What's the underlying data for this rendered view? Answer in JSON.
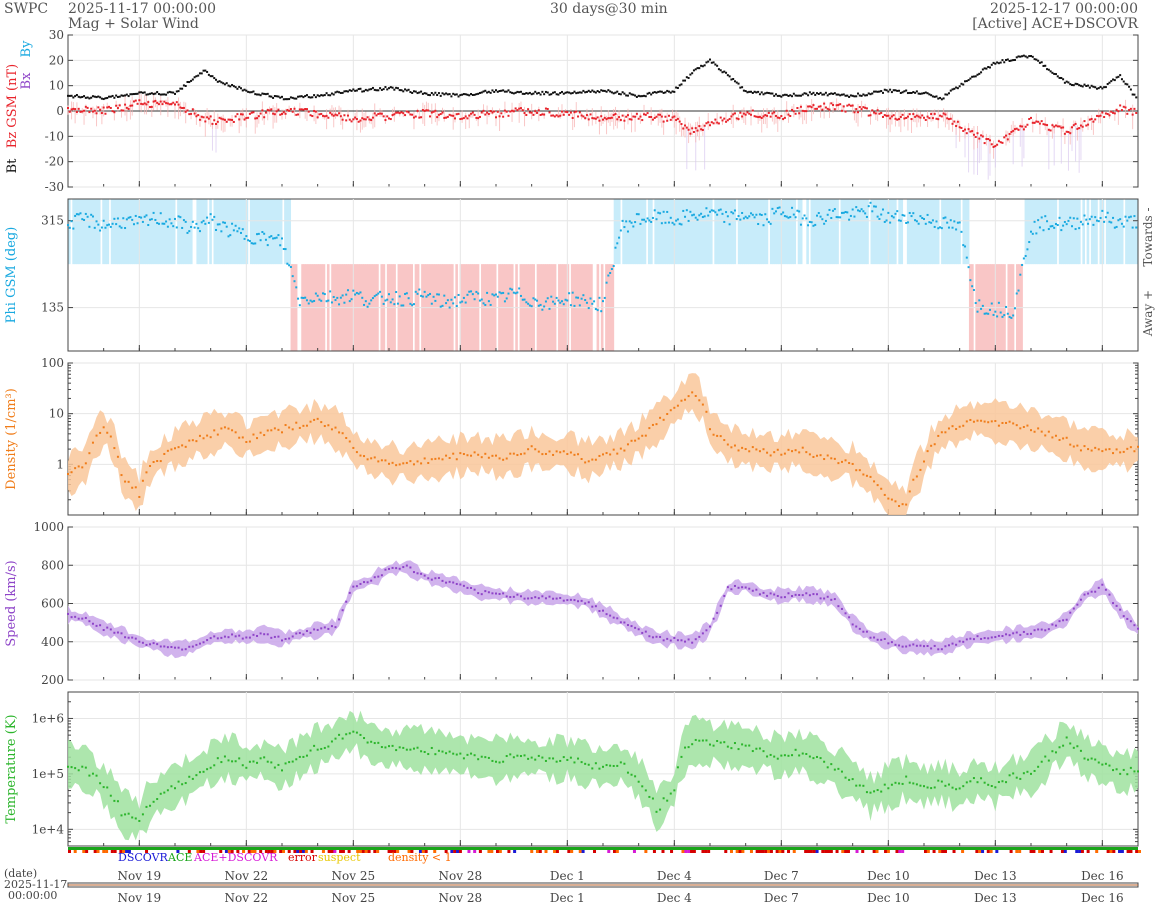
{
  "header": {
    "brand": "SWPC",
    "start_time": "2025-11-17 00:00:00",
    "subtitle": "Mag + Solar Wind",
    "span": "30 days@30 min",
    "end_time": "2025-12-17 00:00:00",
    "source": "[Active] ACE+DSCOVR"
  },
  "colors": {
    "bt": "#111111",
    "bz": "#e8242c",
    "bx": "#8e44c8",
    "by": "#19a9e0",
    "phi": "#19a9e0",
    "phi_towards_band": "#c8ecfa",
    "phi_away_band": "#f9c6c6",
    "density": "#f07d1a",
    "density_band": "#f9c79a",
    "speed": "#8e44c8",
    "speed_band": "#c9a6ea",
    "temperature": "#2bb52b",
    "temperature_band": "#9fe29f",
    "dscovr": "#1a1ad6",
    "ace": "#1aa51a",
    "acedscovr": "#d61ad6",
    "error": "#d60000",
    "suspect": "#e8c800",
    "density_lt1": "#ff6a00"
  },
  "legend": {
    "dscovr": "DSCOVR",
    "ace": "ACE",
    "acedscovr": "ACE+DSCOVR",
    "error": "error",
    "suspect": "suspect",
    "density": "density < 1"
  },
  "bottom": {
    "label_line1": "(date)",
    "label_line2": "2025-11-17",
    "label_line3": "00:00:00"
  },
  "chart_data": [
    {
      "type": "line",
      "name": "mag",
      "ylim": [
        -30,
        30
      ],
      "yticks": [
        30,
        20,
        10,
        0,
        -10,
        -20,
        -30
      ],
      "ylabel_parts": [
        "Bt",
        "Bz GSM (nT)",
        "Bx",
        "By"
      ],
      "series": [
        {
          "name": "Bt",
          "x": [
            0,
            1,
            2,
            3,
            3.8,
            4.2,
            5,
            6,
            7,
            8,
            9,
            10,
            11,
            12,
            13,
            14,
            15,
            16,
            17,
            17.5,
            18,
            19,
            20,
            21,
            22,
            23,
            24,
            24.5,
            25,
            26,
            27,
            28,
            29,
            29.5,
            30
          ],
          "y": [
            6,
            5,
            7,
            7,
            16,
            12,
            8,
            5,
            6,
            8,
            9,
            7,
            6,
            8,
            7,
            7,
            8,
            6,
            8,
            15,
            20,
            8,
            6,
            7,
            6,
            8,
            7,
            5,
            10,
            19,
            22,
            11,
            9,
            14,
            4
          ]
        },
        {
          "name": "Bz",
          "x": [
            0,
            1,
            2,
            3,
            3.8,
            4.2,
            5,
            6,
            7,
            8,
            9,
            10,
            11,
            12,
            13,
            14,
            15,
            16,
            17,
            17.5,
            18,
            19,
            20,
            21,
            22,
            23,
            24,
            24.5,
            25,
            26,
            27,
            28,
            29,
            29.5,
            30
          ],
          "y": [
            1,
            0,
            3,
            3,
            -3,
            -4,
            -2,
            0,
            -1,
            -3,
            -2,
            -1,
            -2,
            -1,
            0,
            -1,
            -3,
            -2,
            -3,
            -8,
            -5,
            -1,
            -2,
            2,
            1,
            -2,
            -3,
            -2,
            -6,
            -14,
            -4,
            -8,
            -2,
            1,
            -1
          ]
        }
      ]
    },
    {
      "type": "scatter",
      "name": "phi",
      "ylim": [
        45,
        360
      ],
      "yticks": [
        315,
        135
      ],
      "ylabel": "Phi GSM (deg)",
      "right_label_top": "Towards -",
      "right_label_bottom": "Away +",
      "x": [
        0,
        0.5,
        1,
        1.5,
        2,
        2.5,
        3,
        3.5,
        4,
        4.5,
        5,
        5.5,
        6,
        6.5,
        7,
        7.5,
        8,
        8.5,
        9,
        9.5,
        10,
        10.5,
        11,
        11.5,
        12,
        12.5,
        13,
        13.5,
        14,
        14.5,
        15,
        15.5,
        16,
        16.5,
        17,
        17.5,
        18,
        18.5,
        19,
        19.5,
        20,
        20.5,
        21,
        21.5,
        22,
        22.5,
        23,
        23.5,
        24,
        24.5,
        25,
        25.5,
        26,
        26.5,
        27,
        27.5,
        28,
        28.5,
        29,
        29.5,
        30
      ],
      "y": [
        310,
        318,
        305,
        314,
        309,
        320,
        312,
        300,
        315,
        296,
        285,
        278,
        272,
        150,
        160,
        155,
        162,
        148,
        158,
        152,
        160,
        145,
        152,
        158,
        150,
        165,
        150,
        142,
        155,
        148,
        140,
        300,
        318,
        322,
        316,
        325,
        330,
        320,
        328,
        315,
        335,
        322,
        318,
        330,
        326,
        338,
        320,
        325,
        318,
        310,
        300,
        140,
        132,
        128,
        300,
        312,
        305,
        318,
        322,
        310,
        315
      ]
    },
    {
      "type": "line",
      "name": "density",
      "yscale": "log",
      "ylim": [
        0.1,
        100
      ],
      "yticks": [
        100,
        10,
        1
      ],
      "ylabel": "Density (1/cm³)",
      "x": [
        0,
        0.5,
        1,
        1.5,
        2,
        2.5,
        3,
        3.5,
        4,
        4.5,
        5,
        5.5,
        6,
        6.5,
        7,
        7.5,
        8,
        8.5,
        9,
        9.5,
        10,
        10.5,
        11,
        11.5,
        12,
        12.5,
        13,
        13.5,
        14,
        14.5,
        15,
        15.5,
        16,
        16.5,
        17,
        17.5,
        18,
        18.5,
        19,
        19.5,
        20,
        20.5,
        21,
        21.5,
        22,
        22.5,
        23,
        23.5,
        24,
        24.5,
        25,
        25.5,
        26,
        26.5,
        27,
        27.5,
        28,
        28.5,
        29,
        29.5,
        30
      ],
      "y": [
        0.6,
        1,
        5,
        0.6,
        0.25,
        1.2,
        2,
        3,
        4,
        5,
        3,
        4,
        5,
        6,
        7,
        5,
        2,
        1.3,
        1.1,
        1,
        1.2,
        1.3,
        1.5,
        1.6,
        1.4,
        1.5,
        2,
        1.6,
        1.8,
        1.2,
        1.5,
        2,
        3,
        6,
        12,
        28,
        5,
        2.5,
        2,
        1.8,
        1.7,
        2,
        1.5,
        1.2,
        1,
        0.5,
        0.2,
        0.15,
        1,
        4,
        6,
        8,
        7,
        6,
        5,
        4,
        3,
        2,
        2,
        1.8,
        2
      ]
    },
    {
      "type": "line",
      "name": "speed",
      "ylim": [
        200,
        1000
      ],
      "yticks": [
        1000,
        800,
        600,
        400,
        200
      ],
      "ylabel": "Speed (km/s)",
      "x": [
        0,
        0.5,
        1,
        1.5,
        2,
        2.5,
        3,
        3.5,
        4,
        4.5,
        5,
        5.5,
        6,
        6.5,
        7,
        7.5,
        8,
        8.5,
        9,
        9.5,
        10,
        10.5,
        11,
        11.5,
        12,
        12.5,
        13,
        13.5,
        14,
        14.5,
        15,
        15.5,
        16,
        16.5,
        17,
        17.5,
        18,
        18.5,
        19,
        19.5,
        20,
        20.5,
        21,
        21.5,
        22,
        22.5,
        23,
        23.5,
        24,
        24.5,
        25,
        25.5,
        26,
        26.5,
        27,
        27.5,
        28,
        28.5,
        29,
        29.5,
        30
      ],
      "y": [
        540,
        520,
        470,
        440,
        400,
        380,
        360,
        375,
        420,
        430,
        425,
        440,
        415,
        440,
        460,
        480,
        690,
        720,
        780,
        790,
        740,
        720,
        690,
        660,
        650,
        640,
        630,
        630,
        620,
        610,
        560,
        510,
        460,
        420,
        410,
        400,
        470,
        680,
        690,
        650,
        640,
        650,
        640,
        620,
        500,
        430,
        400,
        380,
        370,
        370,
        400,
        420,
        430,
        440,
        450,
        470,
        520,
        640,
        690,
        560,
        460
      ]
    },
    {
      "type": "line",
      "name": "temperature",
      "yscale": "log",
      "ylim": [
        5000,
        3000000
      ],
      "yticks": [
        "1e+6",
        "1e+5",
        "1e+4"
      ],
      "ylabel": "Temperature (K)",
      "x": [
        0,
        0.5,
        1,
        1.5,
        2,
        2.5,
        3,
        3.5,
        4,
        4.5,
        5,
        5.5,
        6,
        6.5,
        7,
        7.5,
        8,
        8.5,
        9,
        9.5,
        10,
        10.5,
        11,
        11.5,
        12,
        12.5,
        13,
        13.5,
        14,
        14.5,
        15,
        15.5,
        16,
        16.5,
        17,
        17.5,
        18,
        18.5,
        19,
        19.5,
        20,
        20.5,
        21,
        21.5,
        22,
        22.5,
        23,
        23.5,
        24,
        24.5,
        25,
        25.5,
        26,
        26.5,
        27,
        27.5,
        28,
        28.5,
        29,
        29.5,
        30
      ],
      "y": [
        150000,
        120000,
        60000,
        20000,
        15000,
        40000,
        60000,
        90000,
        150000,
        200000,
        150000,
        180000,
        120000,
        200000,
        300000,
        400000,
        600000,
        350000,
        280000,
        300000,
        270000,
        250000,
        220000,
        200000,
        180000,
        200000,
        200000,
        180000,
        190000,
        150000,
        130000,
        150000,
        80000,
        20000,
        50000,
        400000,
        350000,
        330000,
        300000,
        250000,
        200000,
        250000,
        180000,
        120000,
        80000,
        40000,
        60000,
        80000,
        60000,
        70000,
        50000,
        80000,
        60000,
        90000,
        100000,
        200000,
        400000,
        200000,
        150000,
        100000,
        120000
      ]
    },
    {
      "type": "bar",
      "name": "source-strip",
      "categories": [
        "DSCOVR",
        "ACE",
        "ACE+DSCOVR",
        "error",
        "suspect",
        "density < 1"
      ]
    }
  ],
  "xaxis": {
    "type": "date",
    "range": [
      "2025-11-17 00:00:00",
      "2025-12-17 00:00:00"
    ],
    "tick_days": [
      2,
      5,
      8,
      11,
      14,
      17,
      20,
      23,
      26,
      29
    ],
    "tick_labels": [
      "Nov 19",
      "Nov 22",
      "Nov 25",
      "Nov 28",
      "Dec 1",
      "Dec 4",
      "Dec 7",
      "Dec 10",
      "Dec 13",
      "Dec 16"
    ]
  }
}
